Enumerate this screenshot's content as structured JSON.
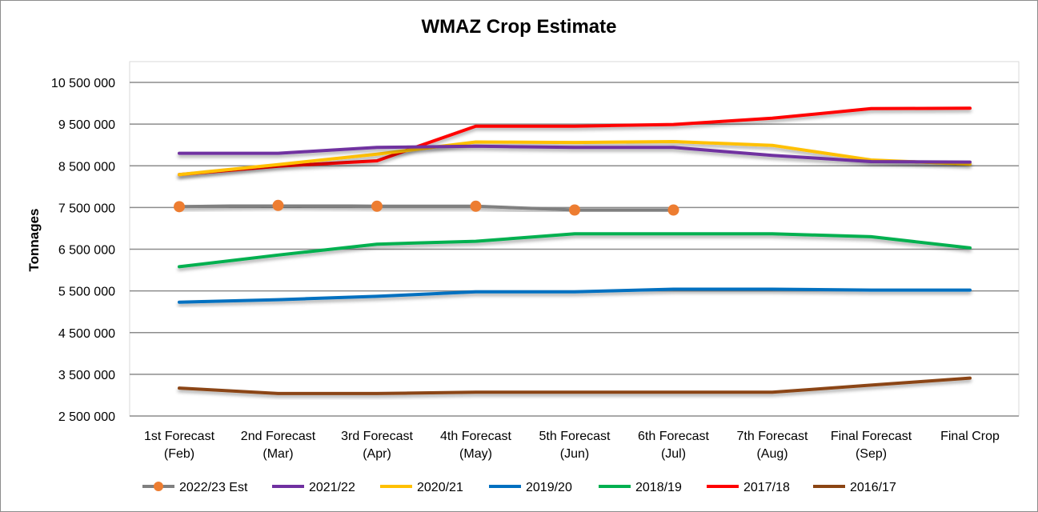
{
  "chart_data": {
    "type": "line",
    "title": "WMAZ Crop Estimate",
    "xlabel": "",
    "ylabel": "Tonnages",
    "ylim": [
      2500000,
      10500000
    ],
    "yticks": [
      "2 500 000",
      "3 500 000",
      "4 500 000",
      "5 500 000",
      "6 500 000",
      "7 500 000",
      "8 500 000",
      "9 500 000",
      "10 500 000"
    ],
    "categories": [
      [
        "1st Forecast",
        "(Feb)"
      ],
      [
        "2nd Forecast",
        "(Mar)"
      ],
      [
        "3rd Forecast",
        "(Apr)"
      ],
      [
        "4th Forecast",
        "(May)"
      ],
      [
        "5th Forecast",
        "(Jun)"
      ],
      [
        "6th Forecast",
        "(Jul)"
      ],
      [
        "7th Forecast",
        "(Aug)"
      ],
      [
        "Final Forecast",
        "(Sep)"
      ],
      [
        "Final Crop",
        ""
      ]
    ],
    "grid": true,
    "legend_position": "bottom",
    "series": [
      {
        "name": "2022/23 Est",
        "color": "#808080",
        "marker": "circle",
        "marker_color": "#ED7D31",
        "values": [
          7520000,
          7550000,
          7530000,
          7530000,
          7440000,
          7440000,
          null,
          null,
          null
        ]
      },
      {
        "name": "2021/22",
        "color": "#7030A0",
        "values": [
          8800000,
          8800000,
          8940000,
          8970000,
          8940000,
          8940000,
          8750000,
          8600000,
          8590000
        ]
      },
      {
        "name": "2020/21",
        "color": "#FFC000",
        "values": [
          8290000,
          8530000,
          8780000,
          9070000,
          9060000,
          9080000,
          8990000,
          8640000,
          8540000
        ]
      },
      {
        "name": "2019/20",
        "color": "#0070C0",
        "values": [
          5230000,
          5290000,
          5370000,
          5480000,
          5480000,
          5540000,
          5540000,
          5520000,
          5520000
        ]
      },
      {
        "name": "2018/19",
        "color": "#00B050",
        "values": [
          6080000,
          6360000,
          6620000,
          6690000,
          6870000,
          6870000,
          6870000,
          6800000,
          6530000
        ]
      },
      {
        "name": "2017/18",
        "color": "#FF0000",
        "values": [
          8290000,
          8490000,
          8620000,
          9450000,
          9450000,
          9490000,
          9640000,
          9870000,
          9880000
        ]
      },
      {
        "name": "2016/17",
        "color": "#8B4513",
        "values": [
          3170000,
          3040000,
          3040000,
          3070000,
          3070000,
          3070000,
          3070000,
          3240000,
          3410000
        ]
      }
    ]
  }
}
